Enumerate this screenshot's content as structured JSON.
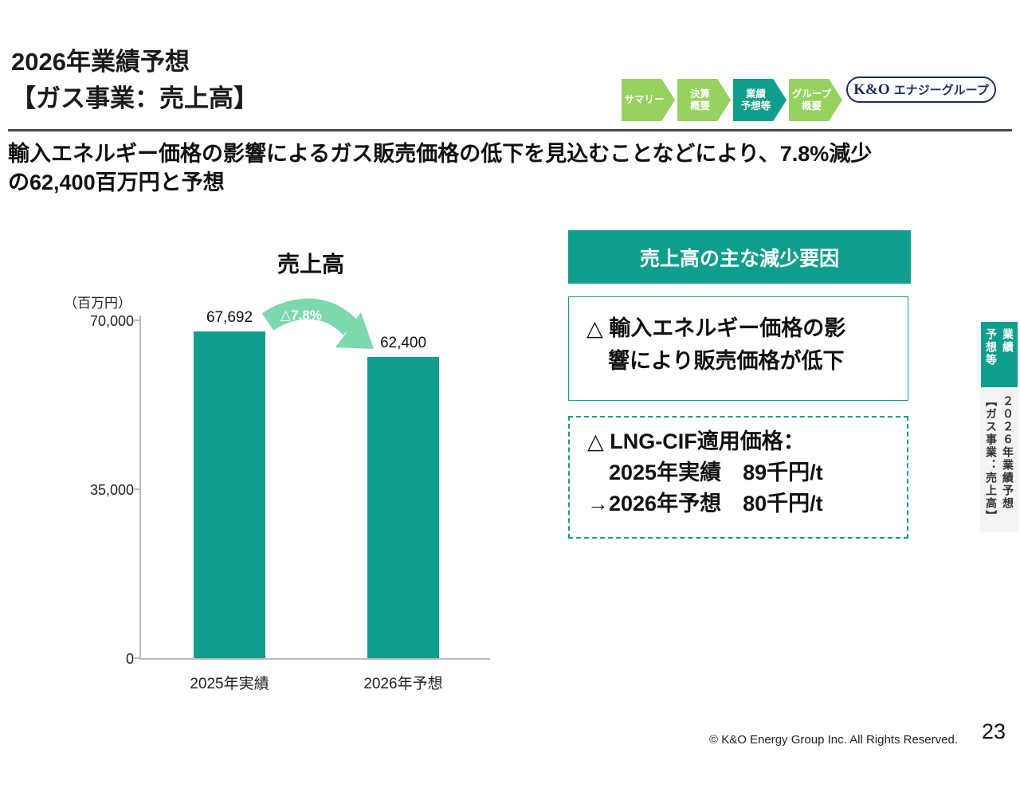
{
  "slide": {
    "title_line1": "2026年業績予想",
    "title_line2": "【ガス事業：売上高】",
    "lead": "輸入エネルギー価格の影響によるガス販売価格の低下を見込むことなどにより、7.8%減少\nの62,400百万円と予想",
    "page_number": "23",
    "copyright": "© K&O Energy Group Inc. All Rights Reserved."
  },
  "nav": {
    "items": [
      {
        "label": "サマリー",
        "active": false
      },
      {
        "label": "決算\n概要",
        "active": false
      },
      {
        "label": "業績\n予想等",
        "active": true
      },
      {
        "label": "グループ\n概要",
        "active": false
      }
    ]
  },
  "logo": {
    "brand": "K&O",
    "name": "エナジーグループ"
  },
  "chart_data": {
    "type": "bar",
    "title": "売上高",
    "unit_label": "（百万円）",
    "categories": [
      "2025年実績",
      "2026年予想"
    ],
    "values": [
      67692,
      62400
    ],
    "value_labels": [
      "67,692",
      "62,400"
    ],
    "change_label": "△7.8%",
    "ylim": [
      0,
      70000
    ],
    "yticks": [
      0,
      35000,
      70000
    ],
    "ytick_labels": [
      "0",
      "35,000",
      "70,000"
    ],
    "legend": null,
    "grid": false
  },
  "factors": {
    "header": "売上高の主な減少要因",
    "box1": "△ 輸入エネルギー価格の影\n　響により販売価格が低下",
    "box2": "△ LNG-CIF適用価格：\n　2025年実績　89千円/t\n→2026年予想　80千円/t"
  },
  "side_tab": {
    "section_part1": "業績",
    "section_part2": "予想等",
    "title_part1": "２０２６年業績予想",
    "title_part2": "【ガス事業：売上高】"
  },
  "colors": {
    "teal": "#0f9e8b",
    "nav_light": "#96d25f",
    "arrow_mint": "#7dd8ad",
    "navy": "#1c2f5c"
  }
}
